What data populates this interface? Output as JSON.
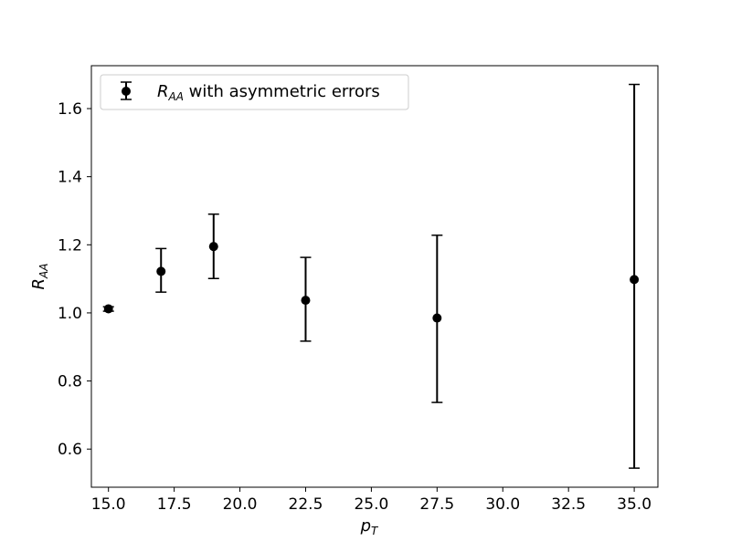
{
  "chart_data": {
    "type": "scatter",
    "xlim": [
      14.35,
      35.9
    ],
    "ylim": [
      0.488,
      1.726
    ],
    "x_ticks": [
      15.0,
      17.5,
      20.0,
      22.5,
      25.0,
      27.5,
      30.0,
      32.5,
      35.0
    ],
    "x_tick_labels": [
      "15.0",
      "17.5",
      "20.0",
      "22.5",
      "25.0",
      "27.5",
      "30.0",
      "32.5",
      "35.0"
    ],
    "y_ticks": [
      0.6,
      0.8,
      1.0,
      1.2,
      1.4,
      1.6
    ],
    "y_tick_labels": [
      "0.6",
      "0.8",
      "1.0",
      "1.2",
      "1.4",
      "1.6"
    ],
    "xlabel": {
      "base": "p",
      "sub": "T"
    },
    "ylabel": {
      "base": "R",
      "sub": "AA"
    },
    "legend": {
      "placement": "top-left",
      "label_base": "R",
      "label_sub": "AA",
      "label_rest": " with asymmetric errors"
    },
    "grid": false,
    "color": "#000000",
    "series": [
      {
        "points": [
          {
            "x": 15.0,
            "y": 1.012,
            "y_low": 1.005,
            "y_high": 1.018
          },
          {
            "x": 17.0,
            "y": 1.122,
            "y_low": 1.061,
            "y_high": 1.189
          },
          {
            "x": 19.0,
            "y": 1.195,
            "y_low": 1.101,
            "y_high": 1.29
          },
          {
            "x": 22.5,
            "y": 1.037,
            "y_low": 0.917,
            "y_high": 1.163
          },
          {
            "x": 27.5,
            "y": 0.985,
            "y_low": 0.737,
            "y_high": 1.228
          },
          {
            "x": 35.0,
            "y": 1.098,
            "y_low": 0.544,
            "y_high": 1.671
          }
        ]
      }
    ]
  }
}
